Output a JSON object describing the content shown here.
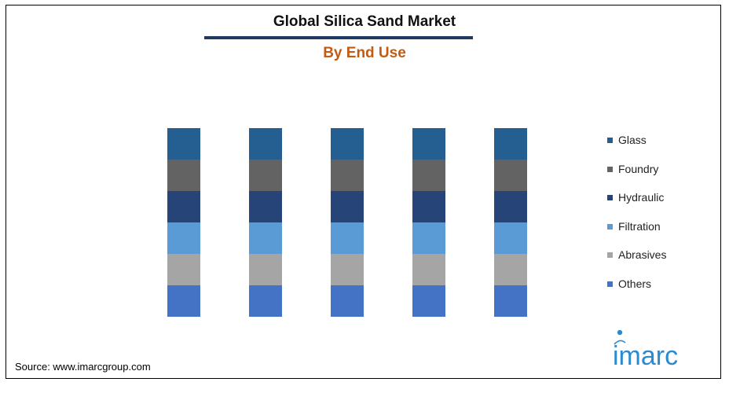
{
  "header": {
    "title": "Global Silica Sand Market",
    "subtitle": "By End Use"
  },
  "source": "Source: www.imarcgroup.com",
  "logo": {
    "text": "imarc",
    "color": "#2a8bd0"
  },
  "chart_data": {
    "type": "bar",
    "stacked": true,
    "normalized": true,
    "categories": [
      "",
      "",
      "",
      "",
      ""
    ],
    "series": [
      {
        "name": "Glass",
        "values": [
          1,
          1,
          1,
          1,
          1
        ],
        "color": "#255e91"
      },
      {
        "name": "Foundry",
        "values": [
          1,
          1,
          1,
          1,
          1
        ],
        "color": "#636363"
      },
      {
        "name": "Hydraulic",
        "values": [
          1,
          1,
          1,
          1,
          1
        ],
        "color": "#264478"
      },
      {
        "name": "Filtration",
        "values": [
          1,
          1,
          1,
          1,
          1
        ],
        "color": "#5b9bd5"
      },
      {
        "name": "Abrasives",
        "values": [
          1,
          1,
          1,
          1,
          1
        ],
        "color": "#a5a5a5"
      },
      {
        "name": "Others",
        "values": [
          1,
          1,
          1,
          1,
          1
        ],
        "color": "#4472c4"
      }
    ],
    "legend_position": "right",
    "grid": false,
    "axes_visible": false
  }
}
